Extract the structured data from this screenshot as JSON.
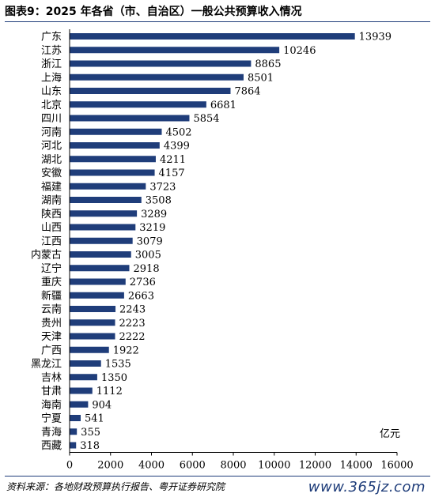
{
  "title": "图表9：2025 年各省（市、自治区）一般公共预算收入情况",
  "source": "资料来源：各地财政预算执行报告、粤开证券研究院",
  "watermark": "www.365jz.com",
  "colors": {
    "bar": "#1F3D7A",
    "rule": "#1F3D7A"
  },
  "chart_data": {
    "type": "bar",
    "orientation": "horizontal",
    "title": "",
    "xlabel": "",
    "ylabel": "",
    "unit_label": "亿元",
    "xlim": [
      0,
      16000
    ],
    "xticks": [
      "0",
      "2000",
      "4000",
      "6000",
      "8000",
      "10000",
      "12000",
      "14000",
      "16000"
    ],
    "grid": false,
    "categories": [
      "广东",
      "江苏",
      "浙江",
      "上海",
      "山东",
      "北京",
      "四川",
      "河南",
      "河北",
      "湖北",
      "安徽",
      "福建",
      "湖南",
      "陕西",
      "山西",
      "江西",
      "内蒙古",
      "辽宁",
      "重庆",
      "新疆",
      "云南",
      "贵州",
      "天津",
      "广西",
      "黑龙江",
      "吉林",
      "甘肃",
      "海南",
      "宁夏",
      "青海",
      "西藏"
    ],
    "values": [
      13939,
      10246,
      8865,
      8501,
      7864,
      6681,
      5854,
      4502,
      4399,
      4211,
      4157,
      3723,
      3508,
      3289,
      3219,
      3079,
      3005,
      2918,
      2736,
      2663,
      2243,
      2223,
      2222,
      1922,
      1535,
      1350,
      1112,
      904,
      541,
      355,
      318
    ]
  }
}
